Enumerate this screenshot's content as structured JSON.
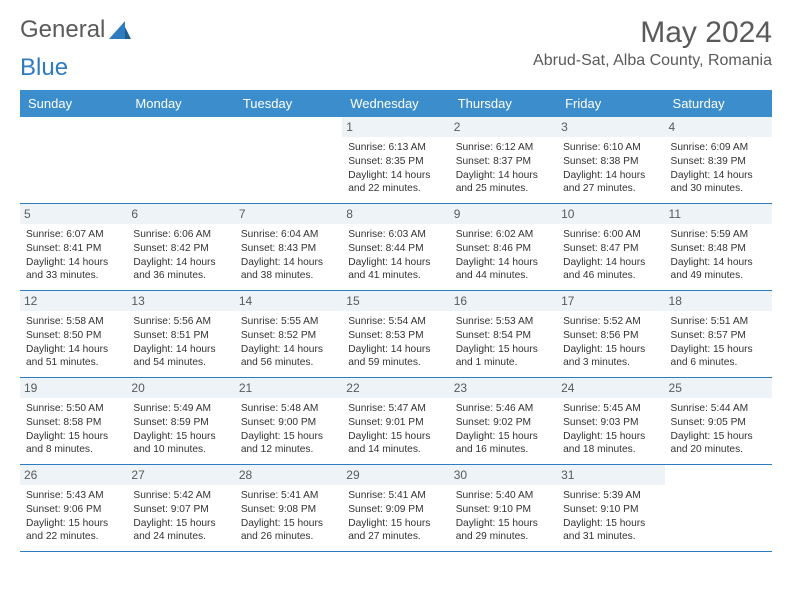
{
  "brand": {
    "part1": "General",
    "part2": "Blue"
  },
  "title": "May 2024",
  "location": "Abrud-Sat, Alba County, Romania",
  "colors": {
    "header_bg": "#3c8dcc",
    "header_text": "#ffffff",
    "border": "#2f7bbf",
    "daynum_bg": "#eef3f7",
    "text": "#333333",
    "muted": "#5a5a5a"
  },
  "day_names": [
    "Sunday",
    "Monday",
    "Tuesday",
    "Wednesday",
    "Thursday",
    "Friday",
    "Saturday"
  ],
  "weeks": [
    [
      {
        "empty": true
      },
      {
        "empty": true
      },
      {
        "empty": true
      },
      {
        "num": "1",
        "sunrise": "6:13 AM",
        "sunset": "8:35 PM",
        "daylight": "14 hours and 22 minutes."
      },
      {
        "num": "2",
        "sunrise": "6:12 AM",
        "sunset": "8:37 PM",
        "daylight": "14 hours and 25 minutes."
      },
      {
        "num": "3",
        "sunrise": "6:10 AM",
        "sunset": "8:38 PM",
        "daylight": "14 hours and 27 minutes."
      },
      {
        "num": "4",
        "sunrise": "6:09 AM",
        "sunset": "8:39 PM",
        "daylight": "14 hours and 30 minutes."
      }
    ],
    [
      {
        "num": "5",
        "sunrise": "6:07 AM",
        "sunset": "8:41 PM",
        "daylight": "14 hours and 33 minutes."
      },
      {
        "num": "6",
        "sunrise": "6:06 AM",
        "sunset": "8:42 PM",
        "daylight": "14 hours and 36 minutes."
      },
      {
        "num": "7",
        "sunrise": "6:04 AM",
        "sunset": "8:43 PM",
        "daylight": "14 hours and 38 minutes."
      },
      {
        "num": "8",
        "sunrise": "6:03 AM",
        "sunset": "8:44 PM",
        "daylight": "14 hours and 41 minutes."
      },
      {
        "num": "9",
        "sunrise": "6:02 AM",
        "sunset": "8:46 PM",
        "daylight": "14 hours and 44 minutes."
      },
      {
        "num": "10",
        "sunrise": "6:00 AM",
        "sunset": "8:47 PM",
        "daylight": "14 hours and 46 minutes."
      },
      {
        "num": "11",
        "sunrise": "5:59 AM",
        "sunset": "8:48 PM",
        "daylight": "14 hours and 49 minutes."
      }
    ],
    [
      {
        "num": "12",
        "sunrise": "5:58 AM",
        "sunset": "8:50 PM",
        "daylight": "14 hours and 51 minutes."
      },
      {
        "num": "13",
        "sunrise": "5:56 AM",
        "sunset": "8:51 PM",
        "daylight": "14 hours and 54 minutes."
      },
      {
        "num": "14",
        "sunrise": "5:55 AM",
        "sunset": "8:52 PM",
        "daylight": "14 hours and 56 minutes."
      },
      {
        "num": "15",
        "sunrise": "5:54 AM",
        "sunset": "8:53 PM",
        "daylight": "14 hours and 59 minutes."
      },
      {
        "num": "16",
        "sunrise": "5:53 AM",
        "sunset": "8:54 PM",
        "daylight": "15 hours and 1 minute."
      },
      {
        "num": "17",
        "sunrise": "5:52 AM",
        "sunset": "8:56 PM",
        "daylight": "15 hours and 3 minutes."
      },
      {
        "num": "18",
        "sunrise": "5:51 AM",
        "sunset": "8:57 PM",
        "daylight": "15 hours and 6 minutes."
      }
    ],
    [
      {
        "num": "19",
        "sunrise": "5:50 AM",
        "sunset": "8:58 PM",
        "daylight": "15 hours and 8 minutes."
      },
      {
        "num": "20",
        "sunrise": "5:49 AM",
        "sunset": "8:59 PM",
        "daylight": "15 hours and 10 minutes."
      },
      {
        "num": "21",
        "sunrise": "5:48 AM",
        "sunset": "9:00 PM",
        "daylight": "15 hours and 12 minutes."
      },
      {
        "num": "22",
        "sunrise": "5:47 AM",
        "sunset": "9:01 PM",
        "daylight": "15 hours and 14 minutes."
      },
      {
        "num": "23",
        "sunrise": "5:46 AM",
        "sunset": "9:02 PM",
        "daylight": "15 hours and 16 minutes."
      },
      {
        "num": "24",
        "sunrise": "5:45 AM",
        "sunset": "9:03 PM",
        "daylight": "15 hours and 18 minutes."
      },
      {
        "num": "25",
        "sunrise": "5:44 AM",
        "sunset": "9:05 PM",
        "daylight": "15 hours and 20 minutes."
      }
    ],
    [
      {
        "num": "26",
        "sunrise": "5:43 AM",
        "sunset": "9:06 PM",
        "daylight": "15 hours and 22 minutes."
      },
      {
        "num": "27",
        "sunrise": "5:42 AM",
        "sunset": "9:07 PM",
        "daylight": "15 hours and 24 minutes."
      },
      {
        "num": "28",
        "sunrise": "5:41 AM",
        "sunset": "9:08 PM",
        "daylight": "15 hours and 26 minutes."
      },
      {
        "num": "29",
        "sunrise": "5:41 AM",
        "sunset": "9:09 PM",
        "daylight": "15 hours and 27 minutes."
      },
      {
        "num": "30",
        "sunrise": "5:40 AM",
        "sunset": "9:10 PM",
        "daylight": "15 hours and 29 minutes."
      },
      {
        "num": "31",
        "sunrise": "5:39 AM",
        "sunset": "9:10 PM",
        "daylight": "15 hours and 31 minutes."
      },
      {
        "empty": true
      }
    ]
  ],
  "labels": {
    "sunrise": "Sunrise:",
    "sunset": "Sunset:",
    "daylight": "Daylight:"
  }
}
